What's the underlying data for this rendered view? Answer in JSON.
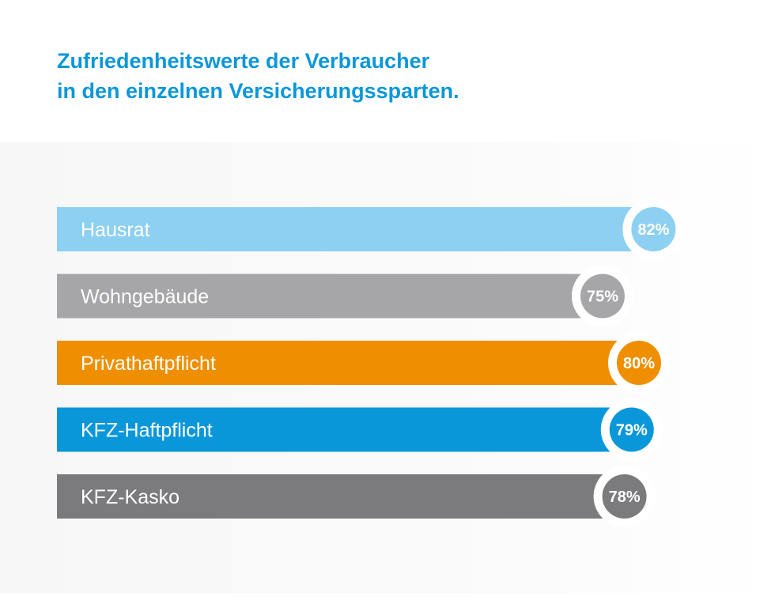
{
  "title_lines": [
    "Zufriedenheitswerte der Verbraucher",
    "in den einzelnen Versicherungssparten."
  ],
  "chart_data": {
    "type": "bar",
    "orientation": "horizontal",
    "title": "Zufriedenheitswerte der Verbraucher in den einzelnen Versicherungssparten.",
    "categories": [
      "Hausrat",
      "Wohngebäude",
      "Privathaftpflicht",
      "KFZ-Haftpflicht",
      "KFZ-Kasko"
    ],
    "values": [
      82,
      75,
      80,
      79,
      78
    ],
    "value_labels": [
      "82%",
      "75%",
      "80%",
      "79%",
      "78%"
    ],
    "colors": [
      "#8dd0f1",
      "#a6a6a8",
      "#ef8f00",
      "#0a97d9",
      "#7b7b7d"
    ],
    "unit": "%",
    "grid": false,
    "legend": "none"
  }
}
